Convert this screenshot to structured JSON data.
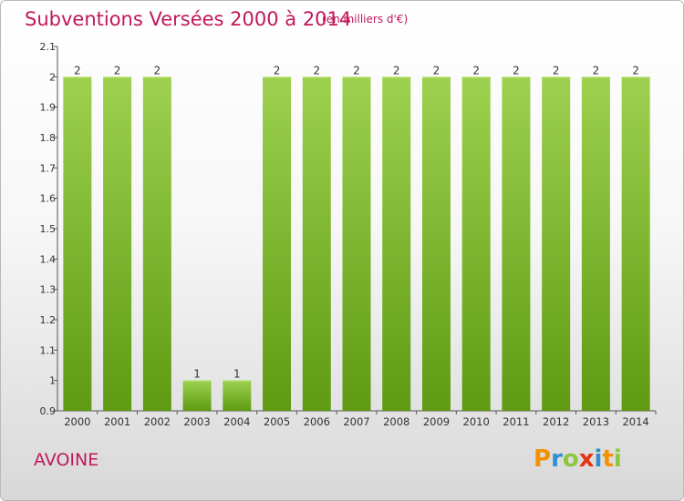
{
  "header": {
    "title": "Subventions Versées 2000 à 2014",
    "unit_note": "(en milliers d'€)"
  },
  "footer": {
    "commune": "AVOINE",
    "logo_letters": [
      "P",
      "r",
      "o",
      "x",
      "i",
      "t",
      "i"
    ],
    "logo_colors": [
      "#f39200",
      "#2f8fd0",
      "#8dc63f",
      "#e53312",
      "#2f8fd0",
      "#f39200",
      "#8dc63f"
    ]
  },
  "colors": {
    "bar_top": "#9dd14f",
    "bar_bottom": "#5f9a12",
    "title": "#c0185a"
  },
  "chart_data": {
    "type": "bar",
    "title": "Subventions Versées 2000 à 2014",
    "xlabel": "",
    "ylabel": "",
    "categories": [
      "2000",
      "2001",
      "2002",
      "2003",
      "2004",
      "2005",
      "2006",
      "2007",
      "2008",
      "2009",
      "2010",
      "2011",
      "2012",
      "2013",
      "2014"
    ],
    "values": [
      2,
      2,
      2,
      1,
      1,
      2,
      2,
      2,
      2,
      2,
      2,
      2,
      2,
      2,
      2
    ],
    "data_labels": [
      "2",
      "2",
      "2",
      "1",
      "1",
      "2",
      "2",
      "2",
      "2",
      "2",
      "2",
      "2",
      "2",
      "2",
      "2"
    ],
    "ylim": [
      0.9,
      2.1
    ],
    "yticks": [
      0.9,
      1,
      1.1,
      1.2,
      1.3,
      1.4,
      1.5,
      1.6,
      1.7,
      1.8,
      1.9,
      2,
      2.1
    ],
    "ytick_labels": [
      "0.9",
      "1",
      "1.1",
      "1.2",
      "1.3",
      "1.4",
      "1.5",
      "1.6",
      "1.7",
      "1.8",
      "1.9",
      "2",
      "2.1"
    ],
    "grid": false,
    "legend": "none"
  }
}
